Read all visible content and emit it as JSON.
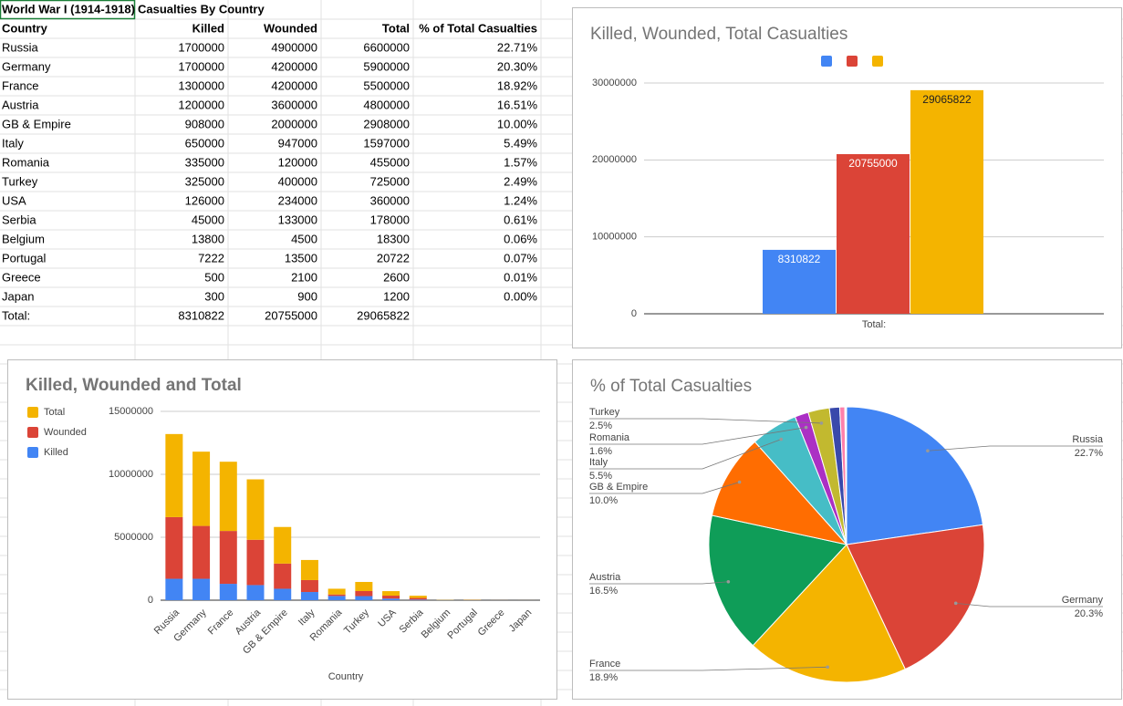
{
  "table": {
    "title": "World War I (1914-1918)",
    "subtitle": "Casualties By Country",
    "header": [
      "Country",
      "Killed",
      "Wounded",
      "Total",
      "% of Total Casualties"
    ],
    "rows": [
      [
        "Russia",
        1700000,
        4900000,
        6600000,
        "22.71%"
      ],
      [
        "Germany",
        1700000,
        4200000,
        5900000,
        "20.30%"
      ],
      [
        "France",
        1300000,
        4200000,
        5500000,
        "18.92%"
      ],
      [
        "Austria",
        1200000,
        3600000,
        4800000,
        "16.51%"
      ],
      [
        "GB & Empire",
        908000,
        2000000,
        2908000,
        "10.00%"
      ],
      [
        "Italy",
        650000,
        947000,
        1597000,
        "5.49%"
      ],
      [
        "Romania",
        335000,
        120000,
        455000,
        "1.57%"
      ],
      [
        "Turkey",
        325000,
        400000,
        725000,
        "2.49%"
      ],
      [
        "USA",
        126000,
        234000,
        360000,
        "1.24%"
      ],
      [
        "Serbia",
        45000,
        133000,
        178000,
        "0.61%"
      ],
      [
        "Belgium",
        13800,
        4500,
        18300,
        "0.06%"
      ],
      [
        "Portugal",
        7222,
        13500,
        20722,
        "0.07%"
      ],
      [
        "Greece",
        500,
        2100,
        2600,
        "0.01%"
      ],
      [
        "Japan",
        300,
        900,
        1200,
        "0.00%"
      ],
      [
        "Total:",
        8310822,
        20755000,
        29065822
      ]
    ]
  },
  "chart_data": [
    {
      "type": "bar",
      "title": "Killed, Wounded, Total Casualties",
      "categories": [
        "Total:"
      ],
      "series": [
        {
          "color": "#4285f4",
          "values": [
            8310822
          ]
        },
        {
          "color": "#db4437",
          "values": [
            20755000
          ]
        },
        {
          "color": "#f4b400",
          "values": [
            29065822
          ]
        }
      ],
      "ylim": [
        0,
        30000000
      ],
      "yticks": [
        0,
        10000000,
        20000000,
        30000000
      ],
      "grid": true,
      "legend": "top"
    },
    {
      "type": "stacked_bar",
      "title": "Killed, Wounded and Total",
      "x_label": "Country",
      "categories": [
        "Russia",
        "Germany",
        "France",
        "Austria",
        "GB & Empire",
        "Italy",
        "Romania",
        "Turkey",
        "USA",
        "Serbia",
        "Belgium",
        "Portugal",
        "Greece",
        "Japan"
      ],
      "series": [
        {
          "name": "Killed",
          "color": "#4285f4",
          "values": [
            1700000,
            1700000,
            1300000,
            1200000,
            908000,
            650000,
            335000,
            325000,
            126000,
            45000,
            13800,
            7222,
            500,
            300
          ]
        },
        {
          "name": "Wounded",
          "color": "#db4437",
          "values": [
            4900000,
            4200000,
            4200000,
            3600000,
            2000000,
            947000,
            120000,
            400000,
            234000,
            133000,
            4500,
            13500,
            2100,
            900
          ]
        },
        {
          "name": "Total",
          "color": "#f4b400",
          "values": [
            6600000,
            5900000,
            5500000,
            4800000,
            2908000,
            1597000,
            455000,
            725000,
            360000,
            178000,
            18300,
            20722,
            2600,
            1200
          ]
        }
      ],
      "ylim": [
        0,
        15000000
      ],
      "yticks": [
        0,
        5000000,
        10000000,
        15000000
      ],
      "grid": true,
      "legend": "left"
    },
    {
      "type": "pie",
      "title": "% of Total Casualties",
      "categories": [
        "Russia",
        "Germany",
        "France",
        "Austria",
        "GB & Empire",
        "Italy",
        "Romania",
        "Turkey",
        null,
        null,
        null,
        null,
        null,
        null
      ],
      "values": [
        22.7,
        20.3,
        18.9,
        16.5,
        10.0,
        5.5,
        1.6,
        2.5,
        1.2,
        0.6,
        0.1,
        0.1,
        0.0,
        0.0
      ],
      "value_labels": [
        "22.7%",
        "20.3%",
        "18.9%",
        "16.5%",
        "10.0%",
        "5.5%",
        "1.6%",
        "2.5%",
        null,
        null,
        null,
        null,
        null,
        null
      ],
      "colors": [
        "#4285f4",
        "#db4437",
        "#f4b400",
        "#0f9d58",
        "#ff6d01",
        "#46bdc6",
        "#ab30c4",
        "#c2b92f",
        "#3949ab",
        "#ff80ab",
        "#7cb342",
        "#8d6e63",
        "#00acc1",
        "#e53935"
      ]
    }
  ]
}
